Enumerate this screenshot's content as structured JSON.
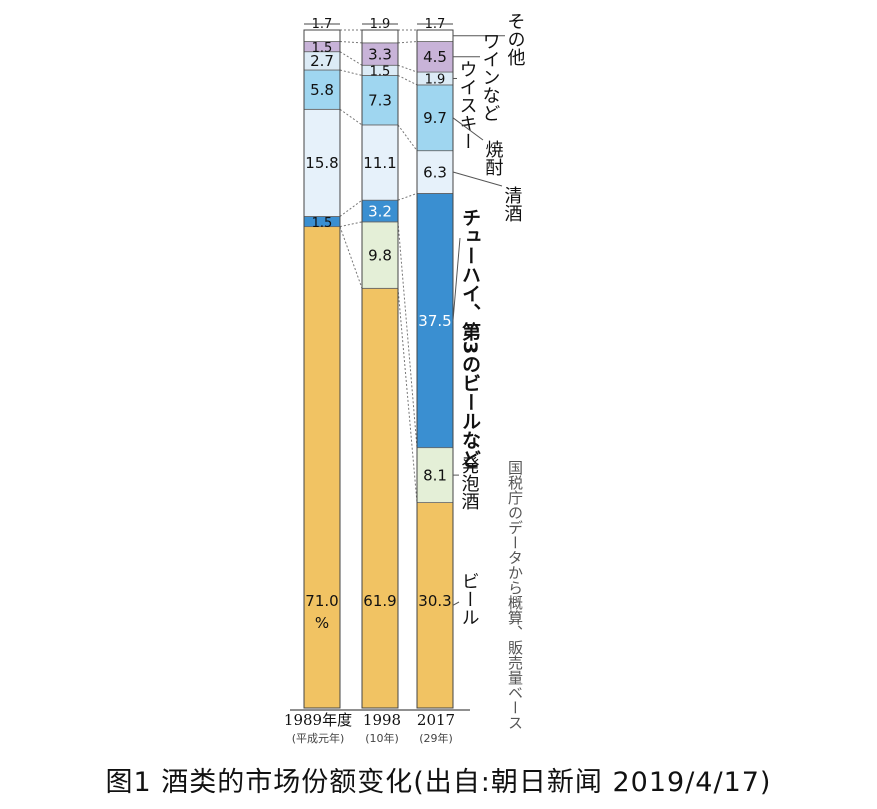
{
  "caption": "图1 酒类的市场份额变化(出自:朝日新闻 2019/4/17)",
  "source_note": "国税庁のデータから概算、販売量ベース",
  "colors": {
    "beer": "#f1c363",
    "happoshu": "#e4efd7",
    "chuhai": "#3a8fd1",
    "sake": "#e6f1fa",
    "shochu": "#9fd6f0",
    "whisky": "#dcebf6",
    "wine": "#c8b3d8",
    "other": "#ffffff",
    "outline": "#666666"
  },
  "chart_data": {
    "type": "bar",
    "stacked": true,
    "unit": "%",
    "categories": [
      "1989年度",
      "1998",
      "2017"
    ],
    "subcategories": [
      "(平成元年)",
      "(10年)",
      "(29年)"
    ],
    "series": [
      {
        "name": "ビール",
        "values": [
          71.0,
          61.9,
          30.3
        ],
        "labels": [
          "71.0",
          "61.9",
          "30.3"
        ],
        "color_key": "beer"
      },
      {
        "name": "発泡酒",
        "values": [
          0,
          9.8,
          8.1
        ],
        "labels": [
          "",
          "9.8",
          "8.1"
        ],
        "color_key": "happoshu"
      },
      {
        "name": "チューハイ、第3のビールなど",
        "values": [
          1.5,
          3.2,
          37.5
        ],
        "labels": [
          "1.5",
          "3.2",
          "37.5"
        ],
        "color_key": "chuhai"
      },
      {
        "name": "清酒",
        "values": [
          15.8,
          11.1,
          6.3
        ],
        "labels": [
          "15.8",
          "11.1",
          "6.3"
        ],
        "color_key": "sake"
      },
      {
        "name": "焼酎",
        "values": [
          5.8,
          7.3,
          9.7
        ],
        "labels": [
          "5.8",
          "7.3",
          "9.7"
        ],
        "color_key": "shochu"
      },
      {
        "name": "ウイスキー",
        "values": [
          2.7,
          1.5,
          1.9
        ],
        "labels": [
          "2.7",
          "1.5",
          "1.9"
        ],
        "color_key": "whisky"
      },
      {
        "name": "ワインなど",
        "values": [
          1.5,
          3.3,
          4.5
        ],
        "labels": [
          "1.5",
          "3.3",
          "4.5"
        ],
        "color_key": "wine"
      },
      {
        "name": "その他",
        "values": [
          1.7,
          1.9,
          1.7
        ],
        "labels": [
          "1.7",
          "1.9",
          "1.7"
        ],
        "color_key": "other"
      }
    ],
    "ylim": [
      0,
      100
    ],
    "percent_mark": "%"
  }
}
